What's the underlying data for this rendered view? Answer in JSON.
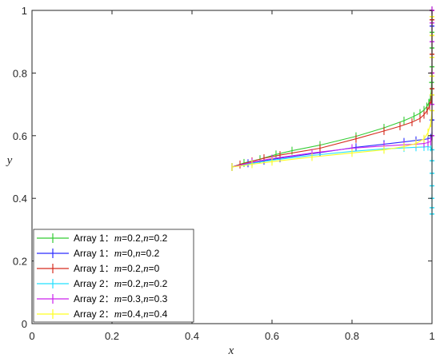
{
  "chart_data": {
    "type": "line",
    "title": "",
    "xlabel": "x",
    "ylabel": "y",
    "xlim": [
      0,
      1
    ],
    "ylim": [
      0,
      1
    ],
    "xticks": [
      "0",
      "0.2",
      "0.4",
      "0.6",
      "0.8",
      "1"
    ],
    "yticks": [
      "0",
      "0.2",
      "0.4",
      "0.6",
      "0.8",
      "1"
    ],
    "grid": false,
    "legend_position": "bottom-left",
    "series": [
      {
        "name": "Array 1：m=0.2,n=0.2",
        "legend": {
          "prefix": "Array 1：",
          "m": "0.2",
          "n": "0.2"
        },
        "color": "#33cc33",
        "x": [
          0.5,
          0.53,
          0.57,
          0.61,
          0.65,
          0.72,
          0.81,
          0.88,
          0.93,
          0.955,
          0.97,
          0.98,
          0.987,
          0.992,
          0.996,
          0.998,
          0.999,
          1.0,
          1.0,
          1.0,
          1.0,
          1.0
        ],
        "y": [
          0.5,
          0.513,
          0.525,
          0.54,
          0.552,
          0.57,
          0.598,
          0.625,
          0.648,
          0.662,
          0.672,
          0.682,
          0.693,
          0.705,
          0.72,
          0.74,
          0.77,
          0.82,
          0.88,
          0.93,
          0.97,
          1.0
        ]
      },
      {
        "name": "Array 1：m=0,n=0.2",
        "legend": {
          "prefix": "Array 1：",
          "m": "0",
          "n": "0.2"
        },
        "color": "#2a2aff",
        "x": [
          0.5,
          0.54,
          0.58,
          0.62,
          0.72,
          0.81,
          0.88,
          0.93,
          0.96,
          0.98,
          0.99,
          0.997,
          1.0,
          1.0,
          1.0,
          1.0,
          1.0,
          1.0
        ],
        "y": [
          0.5,
          0.512,
          0.52,
          0.528,
          0.546,
          0.563,
          0.573,
          0.58,
          0.585,
          0.588,
          0.59,
          0.593,
          0.6,
          0.65,
          0.73,
          0.85,
          0.95,
          1.0
        ]
      },
      {
        "name": "Array 1：m=0.2,n=0",
        "legend": {
          "prefix": "Array 1：",
          "m": "0.2",
          "n": "0"
        },
        "color": "#d62b1e",
        "x": [
          0.5,
          0.52,
          0.55,
          0.58,
          0.62,
          0.72,
          0.81,
          0.88,
          0.92,
          0.95,
          0.97,
          0.98,
          0.988,
          0.994,
          0.998,
          1.0,
          1.0,
          1.0,
          1.0,
          1.0,
          1.0
        ],
        "y": [
          0.5,
          0.508,
          0.518,
          0.528,
          0.538,
          0.56,
          0.59,
          0.615,
          0.63,
          0.643,
          0.655,
          0.667,
          0.68,
          0.695,
          0.715,
          0.75,
          0.8,
          0.86,
          0.92,
          0.97,
          1.0
        ]
      },
      {
        "name": "Array 2：m=0.2,n=0.2",
        "legend": {
          "prefix": "Array 2：",
          "m": "0.2",
          "n": "0.2"
        },
        "color": "#22e0ff",
        "x": [
          0.5,
          0.55,
          0.6,
          0.7,
          0.8,
          0.88,
          0.93,
          0.96,
          0.98,
          0.99,
          0.997,
          1.0,
          1.0,
          1.0,
          1.0,
          1.0,
          1.0,
          1.0
        ],
        "y": [
          0.5,
          0.512,
          0.522,
          0.537,
          0.55,
          0.558,
          0.561,
          0.563,
          0.564,
          0.565,
          0.563,
          0.555,
          0.52,
          0.48,
          0.44,
          0.4,
          0.37,
          0.35
        ]
      },
      {
        "name": "Array 2：m=0.3,n=0.3",
        "legend": {
          "prefix": "Array 2：",
          "m": "0.3",
          "n": "0.3"
        },
        "color": "#cc22ee",
        "x": [
          0.5,
          0.55,
          0.6,
          0.7,
          0.8,
          0.88,
          0.93,
          0.96,
          0.98,
          0.99,
          0.997,
          1.0,
          1.0,
          1.0,
          1.0,
          1.0,
          1.0
        ],
        "y": [
          0.5,
          0.515,
          0.527,
          0.545,
          0.56,
          0.567,
          0.571,
          0.573,
          0.575,
          0.578,
          0.582,
          0.6,
          0.7,
          0.8,
          0.9,
          0.96,
          1.0
        ]
      },
      {
        "name": "Array 2：m=0.4,n=0.4",
        "legend": {
          "prefix": "Array 2：",
          "m": "0.4",
          "n": "0.4"
        },
        "color": "#ffff22",
        "x": [
          0.5,
          0.55,
          0.6,
          0.7,
          0.8,
          0.88,
          0.93,
          0.96,
          0.98,
          0.99,
          0.997,
          1.0,
          1.0,
          1.0,
          1.0,
          1.0,
          1.0
        ],
        "y": [
          0.5,
          0.509,
          0.517,
          0.532,
          0.545,
          0.555,
          0.565,
          0.575,
          0.59,
          0.61,
          0.64,
          0.68,
          0.73,
          0.79,
          0.85,
          0.92,
          0.98
        ]
      }
    ]
  }
}
